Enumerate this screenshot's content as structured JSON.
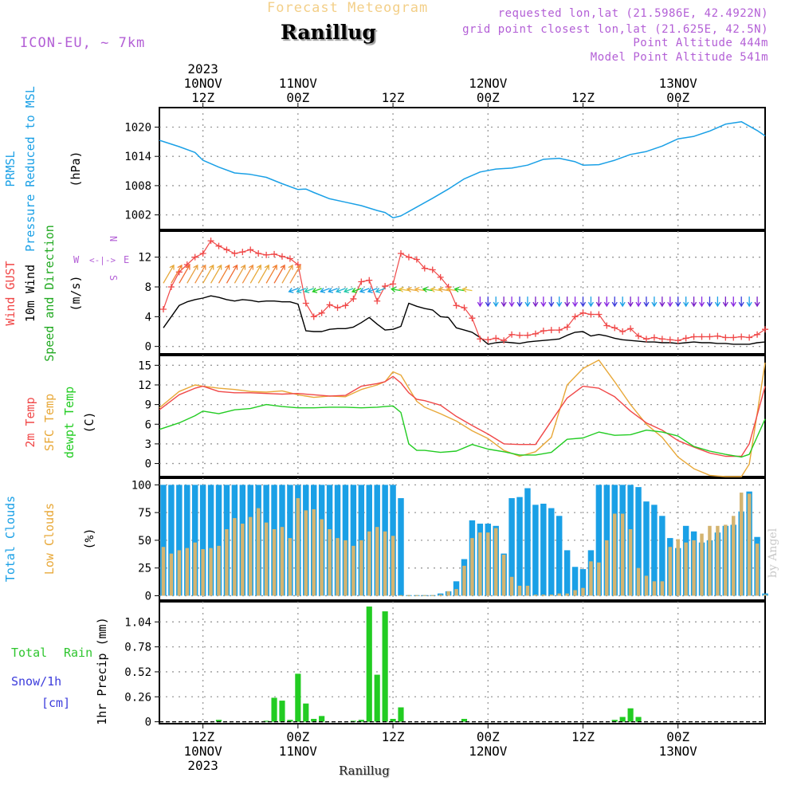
{
  "header": {
    "product": "Forecast Meteogram",
    "station": "Ranillug",
    "model": "ICON-EU, ~ 7km",
    "requested": "requested lon,lat (21.5986E, 42.4922N)",
    "grid_point": "grid point closest lon,lat (21.625E, 42.5N)",
    "point_altitude": "Point Altitude 444m",
    "model_altitude": "Model Point Altitude 541m"
  },
  "watermark": "by Angel",
  "footer": {
    "station": "Ranillug"
  },
  "colors": {
    "pressure": "#1aa0e6",
    "gust": "#f04848",
    "wind10m": "#000000",
    "temp2m": "#f04848",
    "sfc_temp": "#e8a838",
    "dewpoint": "#22cc22",
    "total_clouds": "#1aa0e6",
    "low_clouds": "#d4b470",
    "rain": "#22cc22",
    "snow": "#3c3cdc",
    "header_purple": "#b35fd6"
  },
  "time_axis": {
    "top_ticks": [
      {
        "hour": 0,
        "lines": [
          "2023",
          "10NOV",
          "12Z"
        ]
      },
      {
        "hour": 12,
        "lines": [
          "11NOV",
          "00Z"
        ]
      },
      {
        "hour": 24,
        "lines": [
          "12Z"
        ]
      },
      {
        "hour": 36,
        "lines": [
          "12NOV",
          "00Z"
        ]
      },
      {
        "hour": 48,
        "lines": [
          "12Z"
        ]
      },
      {
        "hour": 60,
        "lines": [
          "13NOV",
          "00Z"
        ]
      }
    ],
    "bottom_ticks": [
      {
        "hour": 0,
        "lines": [
          "12Z",
          "10NOV",
          "2023"
        ]
      },
      {
        "hour": 12,
        "lines": [
          "00Z",
          "11NOV"
        ]
      },
      {
        "hour": 24,
        "lines": [
          "12Z"
        ]
      },
      {
        "hour": 36,
        "lines": [
          "00Z",
          "12NOV"
        ]
      },
      {
        "hour": 48,
        "lines": [
          "12Z"
        ]
      },
      {
        "hour": 60,
        "lines": [
          "00Z",
          "13NOV"
        ]
      }
    ],
    "start_hour": -5.5,
    "end_hour": 71
  },
  "legends": {
    "rain_total": "Total",
    "rain_rain": "Rain",
    "snow": "Snow/1h",
    "snow_unit": "[cm]"
  },
  "chart_data": [
    {
      "type": "line",
      "title": "PRMSL Pressure Reduced to MSL",
      "labels": {
        "a": "PRMSL",
        "b": "Pressure Reduced to MSL",
        "unit": "(hPa)"
      },
      "ylim": [
        999,
        1024
      ],
      "yticks": [
        1002,
        1008,
        1014,
        1020
      ],
      "x": [
        -5.5,
        -3,
        -1,
        0,
        2,
        4,
        6,
        8,
        10,
        12,
        13,
        14,
        16,
        18,
        20,
        22,
        23,
        24,
        25,
        27,
        29,
        31,
        33,
        35,
        37,
        39,
        41,
        43,
        45,
        47,
        48,
        50,
        52,
        54,
        56,
        58,
        60,
        62,
        64,
        66,
        68,
        70,
        71
      ],
      "pressure": [
        1017.3,
        1016.0,
        1014.8,
        1013.2,
        1011.8,
        1010.6,
        1010.3,
        1009.7,
        1008.4,
        1007.2,
        1007.3,
        1006.6,
        1005.3,
        1004.6,
        1003.9,
        1002.9,
        1002.5,
        1001.4,
        1001.8,
        1003.6,
        1005.4,
        1007.3,
        1009.4,
        1010.8,
        1011.4,
        1011.6,
        1012.2,
        1013.4,
        1013.6,
        1012.9,
        1012.2,
        1012.3,
        1013.2,
        1014.4,
        1015.0,
        1016.1,
        1017.6,
        1018.1,
        1019.2,
        1020.6,
        1021.1,
        1019.3,
        1018.2
      ]
    },
    {
      "type": "line",
      "title": "Wind GUST, 10m Wind Speed and Direction",
      "labels": {
        "a": "Wind GUST",
        "b": "10m Wind",
        "c": "Speed and Direction",
        "unit": "(m/s)",
        "compass": {
          "n": "N",
          "s": "S",
          "w": "W",
          "e": "E"
        }
      },
      "ylim": [
        -1,
        15.5
      ],
      "yticks": [
        0,
        4,
        8,
        12
      ],
      "x": [
        -5,
        -4,
        -3,
        -2,
        -1,
        0,
        1,
        2,
        3,
        4,
        5,
        6,
        7,
        8,
        9,
        10,
        11,
        12,
        13,
        14,
        15,
        16,
        17,
        18,
        19,
        20,
        21,
        22,
        23,
        24,
        25,
        26,
        27,
        28,
        29,
        30,
        31,
        32,
        33,
        34,
        35,
        36,
        37,
        38,
        39,
        40,
        41,
        42,
        43,
        44,
        45,
        46,
        47,
        48,
        49,
        50,
        51,
        52,
        53,
        54,
        55,
        56,
        57,
        58,
        59,
        60,
        61,
        62,
        63,
        64,
        65,
        66,
        67,
        68,
        69,
        70,
        71
      ],
      "gust": [
        5.0,
        8.0,
        10.0,
        11.0,
        12.0,
        12.5,
        14.2,
        13.5,
        13.0,
        12.5,
        12.7,
        13.0,
        12.5,
        12.3,
        12.4,
        12.1,
        11.8,
        11.0,
        5.8,
        4.0,
        4.5,
        5.6,
        5.2,
        5.5,
        6.4,
        8.7,
        8.9,
        6.1,
        8.1,
        8.4,
        12.5,
        12.0,
        11.7,
        10.5,
        10.3,
        9.3,
        8.0,
        5.5,
        5.2,
        3.8,
        1.0,
        0.9,
        1.1,
        0.8,
        1.6,
        1.5,
        1.5,
        1.7,
        2.1,
        2.2,
        2.2,
        2.6,
        4.0,
        4.5,
        4.3,
        4.3,
        2.8,
        2.5,
        2.0,
        2.4,
        1.4,
        1.0,
        1.2,
        1.0,
        0.9,
        0.8,
        1.1,
        1.3,
        1.3,
        1.3,
        1.4,
        1.2,
        1.2,
        1.3,
        1.2,
        1.6,
        2.3
      ],
      "wind10m": [
        2.5,
        4.0,
        5.5,
        6.0,
        6.3,
        6.5,
        6.8,
        6.6,
        6.3,
        6.1,
        6.3,
        6.2,
        6.0,
        6.1,
        6.1,
        6.0,
        6.0,
        5.7,
        2.1,
        2.0,
        2.0,
        2.3,
        2.4,
        2.4,
        2.6,
        3.2,
        3.9,
        3.0,
        2.2,
        2.3,
        2.7,
        5.8,
        5.4,
        5.1,
        4.9,
        4.0,
        3.9,
        2.5,
        2.2,
        1.9,
        1.2,
        0.3,
        0.5,
        0.6,
        0.5,
        0.4,
        0.6,
        0.7,
        0.8,
        0.9,
        1.0,
        1.5,
        1.9,
        2.0,
        1.4,
        1.6,
        1.4,
        1.1,
        0.9,
        0.8,
        0.7,
        0.6,
        0.6,
        0.5,
        0.5,
        0.4,
        0.5,
        0.6,
        0.5,
        0.5,
        0.4,
        0.4,
        0.3,
        0.3,
        0.3,
        0.5,
        0.6
      ],
      "arrow_rows": [
        {
          "from": -5,
          "to": 11,
          "step": 1,
          "y": 8.5,
          "rotation": 30,
          "colors": [
            "#e6a838",
            "#f08030",
            "#f06a30",
            "#e8a040",
            "#f09040",
            "#e8a838"
          ]
        },
        {
          "from": 12,
          "to": 23,
          "step": 1,
          "y": 7.8,
          "rotation": 250,
          "colors": [
            "#1aa0e6",
            "#22b4d4",
            "#20c8a8",
            "#22cc22",
            "#1aa0e6"
          ]
        },
        {
          "from": 25,
          "to": 34,
          "step": 1,
          "y": 7.5,
          "rotation": 280,
          "colors": [
            "#22cc22",
            "#e8c040",
            "#e8a838",
            "#f0b040"
          ]
        },
        {
          "from": 35,
          "to": 70,
          "step": 1,
          "y": 6.7,
          "rotation": 180,
          "colors": [
            "#8a2be2",
            "#3c3cdc",
            "#1aa0e6",
            "#7a20c8"
          ]
        }
      ]
    },
    {
      "type": "line",
      "title": "2m Temp, SFC Temp, dewpt Temp",
      "labels": {
        "a": "2m Temp",
        "b": "SFC Temp",
        "c": "dewpt Temp",
        "unit": "(C)"
      },
      "ylim": [
        -2,
        16.5
      ],
      "yticks": [
        0,
        3,
        6,
        9,
        12,
        15
      ],
      "x": [
        -5.5,
        -3,
        -1,
        0,
        2,
        4,
        6,
        8,
        10,
        12,
        14,
        16,
        18,
        20,
        22,
        23,
        24,
        25,
        26,
        27,
        28,
        30,
        32,
        34,
        36,
        38,
        40,
        42,
        44,
        46,
        48,
        50,
        52,
        54,
        56,
        58,
        60,
        62,
        64,
        66,
        68,
        69,
        71
      ],
      "temp2m": [
        8.2,
        10.5,
        11.5,
        11.8,
        11.0,
        10.8,
        10.8,
        10.7,
        10.6,
        10.7,
        10.5,
        10.3,
        10.4,
        11.8,
        12.2,
        12.5,
        13.3,
        12.3,
        10.8,
        9.8,
        9.6,
        8.9,
        7.2,
        5.8,
        4.5,
        3.0,
        2.9,
        2.9,
        6.5,
        10.0,
        11.8,
        11.5,
        10.2,
        8.0,
        6.2,
        5.1,
        3.5,
        2.5,
        1.6,
        1.1,
        1.1,
        3.0,
        11.8
      ],
      "sfc_temp": [
        8.5,
        11.0,
        12.0,
        11.8,
        11.5,
        11.3,
        11.0,
        10.9,
        11.1,
        10.5,
        10.1,
        10.3,
        10.2,
        11.3,
        12.0,
        12.5,
        14.0,
        13.5,
        11.5,
        9.5,
        8.6,
        7.6,
        6.5,
        5.0,
        3.8,
        2.0,
        1.1,
        1.8,
        4.0,
        12.0,
        14.5,
        15.8,
        12.5,
        9.0,
        6.0,
        4.0,
        1.0,
        -0.8,
        -1.8,
        -2.0,
        -2.0,
        -0.1,
        15.4
      ],
      "dewpoint": [
        5.2,
        6.2,
        7.3,
        8.0,
        7.6,
        8.2,
        8.4,
        9.0,
        8.7,
        8.5,
        8.5,
        8.6,
        8.6,
        8.5,
        8.6,
        8.7,
        8.8,
        7.8,
        3.0,
        2.0,
        2.0,
        1.7,
        1.9,
        2.9,
        2.2,
        1.8,
        1.3,
        1.3,
        1.7,
        3.7,
        3.9,
        4.8,
        4.3,
        4.4,
        5.1,
        4.8,
        4.2,
        2.6,
        1.9,
        1.4,
        1.0,
        1.4,
        6.8
      ]
    },
    {
      "type": "bar",
      "title": "Total Clouds, Low Clouds",
      "labels": {
        "a": "Total Clouds",
        "b": "Low Clouds",
        "unit": "(%)"
      },
      "ylim": [
        -4,
        106
      ],
      "yticks": [
        0,
        25,
        50,
        75,
        100
      ],
      "x": [
        -5,
        -4,
        -3,
        -2,
        -1,
        0,
        1,
        2,
        3,
        4,
        5,
        6,
        7,
        8,
        9,
        10,
        11,
        12,
        13,
        14,
        15,
        16,
        17,
        18,
        19,
        20,
        21,
        22,
        23,
        24,
        25,
        26,
        27,
        28,
        29,
        30,
        31,
        32,
        33,
        34,
        35,
        36,
        37,
        38,
        39,
        40,
        41,
        42,
        43,
        44,
        45,
        46,
        47,
        48,
        49,
        50,
        51,
        52,
        53,
        54,
        55,
        56,
        57,
        58,
        59,
        60,
        61,
        62,
        63,
        64,
        65,
        66,
        67,
        68,
        69,
        70,
        71
      ],
      "total_clouds": [
        100,
        100,
        100,
        100,
        100,
        100,
        100,
        100,
        100,
        100,
        100,
        100,
        100,
        100,
        100,
        100,
        100,
        100,
        100,
        100,
        100,
        100,
        100,
        100,
        100,
        100,
        100,
        100,
        100,
        100,
        88,
        0,
        0,
        0,
        0,
        2,
        4,
        13,
        33,
        68,
        65,
        65,
        63,
        38,
        88,
        89,
        97,
        82,
        83,
        79,
        72,
        41,
        26,
        24,
        41,
        100,
        100,
        100,
        100,
        100,
        98,
        85,
        82,
        72,
        52,
        43,
        63,
        58,
        48,
        50,
        57,
        63,
        64,
        76,
        94,
        53,
        2
      ],
      "low_clouds": [
        44,
        38,
        41,
        43,
        48,
        42,
        43,
        45,
        60,
        70,
        65,
        71,
        79,
        66,
        60,
        62,
        52,
        88,
        77,
        78,
        69,
        60,
        52,
        50,
        45,
        50,
        58,
        62,
        58,
        54,
        0,
        0,
        0,
        0,
        0,
        1,
        4,
        6,
        27,
        52,
        57,
        57,
        61,
        37,
        17,
        9,
        9,
        1,
        1,
        1,
        2,
        2,
        5,
        7,
        31,
        30,
        50,
        74,
        74,
        60,
        25,
        18,
        13,
        13,
        44,
        51,
        48,
        50,
        56,
        63,
        63,
        64,
        72,
        93,
        92,
        47,
        1
      ]
    },
    {
      "type": "bar",
      "title": "1hr Precip (mm)",
      "labels": {
        "unit": "1hr Precip (mm)"
      },
      "ylim": [
        -0.02,
        1.25
      ],
      "yticks": [
        0,
        0.26,
        0.52,
        0.78,
        1.04
      ],
      "yticklabels": [
        "0",
        "0.26",
        "0.52",
        "0.78",
        "1.04"
      ],
      "x": [
        -5,
        -4,
        -3,
        -2,
        -1,
        0,
        1,
        2,
        3,
        4,
        5,
        6,
        7,
        8,
        9,
        10,
        11,
        12,
        13,
        14,
        15,
        16,
        17,
        18,
        19,
        20,
        21,
        22,
        23,
        24,
        25,
        26,
        27,
        28,
        29,
        30,
        31,
        32,
        33,
        34,
        35,
        36,
        37,
        38,
        39,
        40,
        41,
        42,
        43,
        44,
        45,
        46,
        47,
        48,
        49,
        50,
        51,
        52,
        53,
        54,
        55,
        56,
        57,
        58,
        59,
        60,
        61,
        62,
        63,
        64,
        65,
        66,
        67,
        68,
        69,
        70,
        71
      ],
      "rain": [
        0,
        0,
        0,
        0,
        0,
        0,
        0,
        0.02,
        0,
        0,
        0,
        0,
        0,
        0.01,
        0.25,
        0.22,
        0.02,
        0.5,
        0.19,
        0.03,
        0.06,
        0,
        0,
        0,
        0.01,
        0.02,
        1.2,
        0.49,
        1.15,
        0.03,
        0.15,
        0,
        0,
        0,
        0,
        0,
        0,
        0,
        0.03,
        0,
        0,
        0,
        0,
        0,
        0,
        0,
        0,
        0,
        0,
        0,
        0,
        0,
        0,
        0,
        0,
        0,
        0,
        0.02,
        0.05,
        0.14,
        0.05,
        0,
        0,
        0,
        0,
        0,
        0,
        0,
        0,
        0,
        0,
        0,
        0,
        0,
        0,
        0,
        0
      ]
    }
  ]
}
